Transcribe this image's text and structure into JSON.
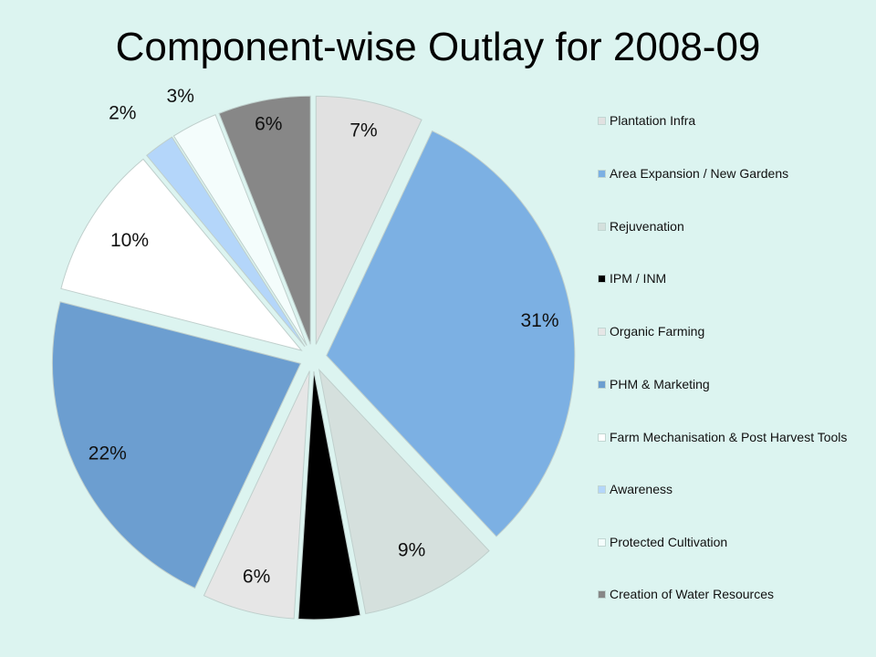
{
  "chart_data": {
    "type": "pie",
    "title": "Component-wise Outlay for 2008-09",
    "legend_position": "right",
    "slices": [
      {
        "label": "Plantation Infra",
        "value": 7,
        "value_label": "7%",
        "color": "#e1e1e1"
      },
      {
        "label": "Area Expansion / New Gardens",
        "value": 31,
        "value_label": "31%",
        "color": "#7cb0e3"
      },
      {
        "label": "Rejuvenation",
        "value": 9,
        "value_label": "9%",
        "color": "#d5e0dd"
      },
      {
        "label": "IPM / INM",
        "value": 4,
        "value_label": "",
        "color": "#000000"
      },
      {
        "label": "Organic Farming",
        "value": 6,
        "value_label": "6%",
        "color": "#e6e6e6"
      },
      {
        "label": "PHM & Marketing",
        "value": 22,
        "value_label": "22%",
        "color": "#6c9ed0"
      },
      {
        "label": "Farm Mechanisation & Post Harvest Tools",
        "value": 10,
        "value_label": "10%",
        "color": "#ffffff"
      },
      {
        "label": "Awareness",
        "value": 2,
        "value_label": "2%",
        "color": "#b4d6fa"
      },
      {
        "label": "Protected Cultivation",
        "value": 3,
        "value_label": "3%",
        "color": "#f4fdfc"
      },
      {
        "label": "Creation of Water Resources",
        "value": 6,
        "value_label": "6%",
        "color": "#878787"
      }
    ]
  }
}
